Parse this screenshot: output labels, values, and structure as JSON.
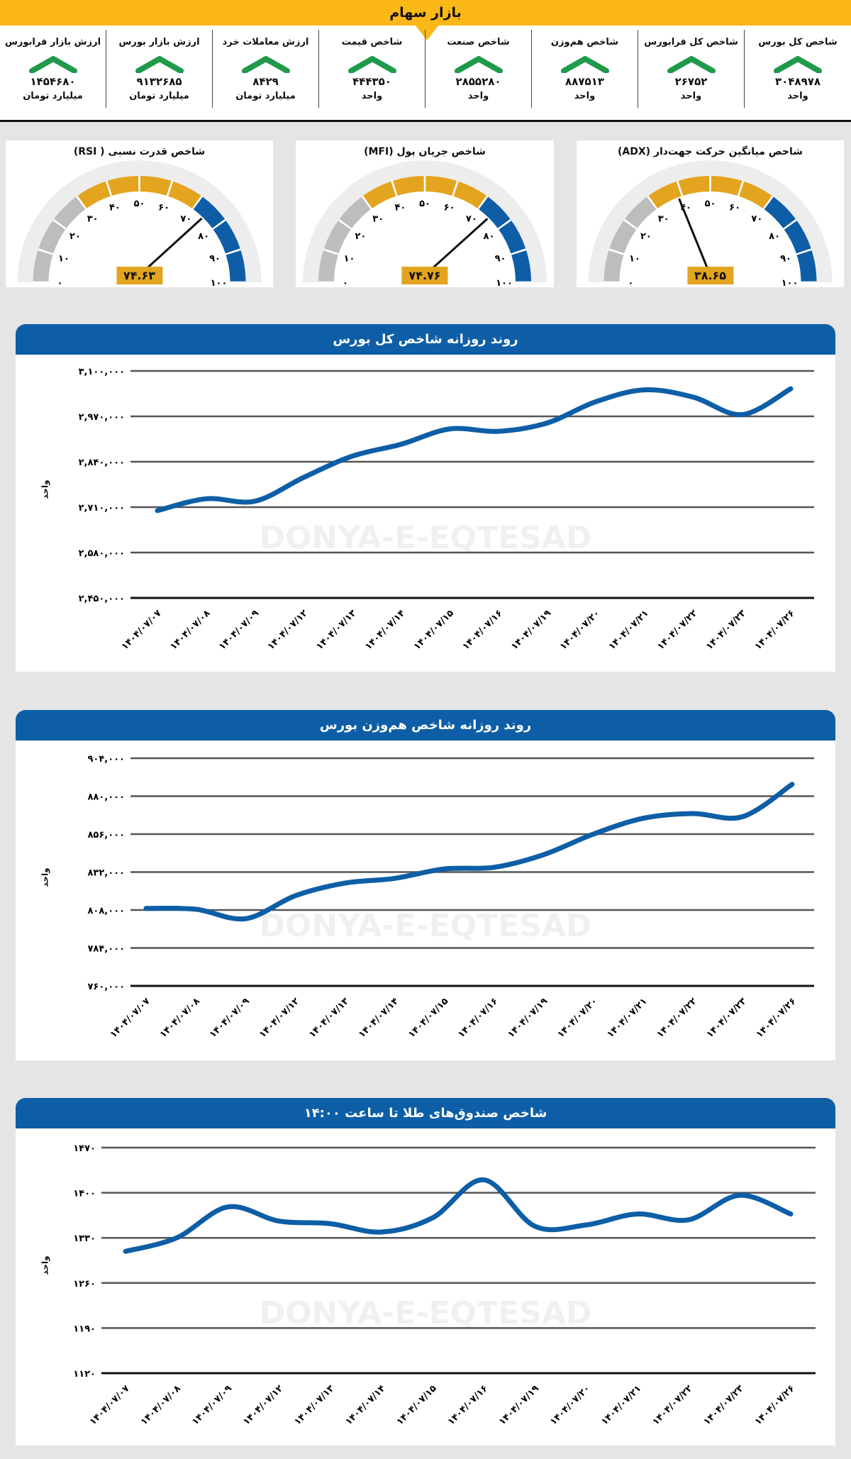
{
  "header": {
    "title": "بازار سهام"
  },
  "stats": [
    {
      "label": "شاخص کل بورس",
      "value": "۳۰۴۸۹۷۸",
      "unit": "واحد",
      "trend": "up"
    },
    {
      "label": "شاخص کل فرابورس",
      "value": "۲۶۷۵۲",
      "unit": "واحد",
      "trend": "up"
    },
    {
      "label": "شاخص هم‌وزن",
      "value": "۸۸۷۵۱۳",
      "unit": "واحد",
      "trend": "up"
    },
    {
      "label": "شاخص صنعت",
      "value": "۲۸۵۵۲۸۰",
      "unit": "واحد",
      "trend": "up"
    },
    {
      "label": "شاخص قیمت",
      "value": "۴۴۴۳۵۰",
      "unit": "واحد",
      "trend": "up"
    },
    {
      "label": "ارزش معاملات خرد",
      "value": "۸۴۲۹",
      "unit": "میلیارد تومان",
      "trend": "up"
    },
    {
      "label": "ارزش بازار بورس",
      "value": "۹۱۳۲۶۸۵",
      "unit": "میلیارد تومان",
      "trend": "up"
    },
    {
      "label": "ارزش بازار فرابورس",
      "value": "۱۴۵۴۶۸۰",
      "unit": "میلیارد تومان",
      "trend": "up"
    }
  ],
  "colors": {
    "yellow": "#fbb817",
    "green": "#1f9a4a",
    "blue": "#0d5ea6",
    "orange": "#e3a41f",
    "grey": "#bdbdbd"
  },
  "gauges": [
    {
      "title": "شاخص قدرت نسبی ( RSI)",
      "value": 74.63,
      "value_label": "۷۴.۶۳"
    },
    {
      "title": "شاخص جریان پول (MFI)",
      "value": 74.76,
      "value_label": "۷۴.۷۶"
    },
    {
      "title": "شاخص میانگین حرکت جهت‌دار (ADX)",
      "value": 38.65,
      "value_label": "۳۸.۶۵"
    }
  ],
  "gauge_ticks": [
    "۰",
    "۱۰",
    "۲۰",
    "۳۰",
    "۴۰",
    "۵۰",
    "۶۰",
    "۷۰",
    "۸۰",
    "۹۰",
    "۱۰۰"
  ],
  "watermark": "DONYA-E-EQTESAD",
  "chart_data": [
    {
      "type": "line",
      "title": "روند روزانه شاخص کل بورس",
      "ylabel": "واحد",
      "xlabel": "",
      "categories": [
        "۱۴۰۴/۰۷/۰۷",
        "۱۴۰۴/۰۷/۰۸",
        "۱۴۰۴/۰۷/۰۹",
        "۱۴۰۴/۰۷/۱۲",
        "۱۴۰۴/۰۷/۱۳",
        "۱۴۰۴/۰۷/۱۴",
        "۱۴۰۴/۰۷/۱۵",
        "۱۴۰۴/۰۷/۱۶",
        "۱۴۰۴/۰۷/۱۹",
        "۱۴۰۴/۰۷/۲۰",
        "۱۴۰۴/۰۷/۲۱",
        "۱۴۰۴/۰۷/۲۲",
        "۱۴۰۴/۰۷/۲۳",
        "۱۴۰۴/۰۷/۲۶"
      ],
      "values": [
        2700000,
        2734000,
        2727000,
        2795000,
        2856000,
        2890000,
        2934000,
        2927000,
        2951000,
        3012000,
        3046000,
        3025000,
        2975000,
        3048978
      ],
      "ylim": [
        2450000,
        3100000
      ],
      "yticks": [
        3100000,
        2970000,
        2840000,
        2710000,
        2580000,
        2450000
      ],
      "ytick_labels": [
        "۳,۱۰۰,۰۰۰",
        "۲,۹۷۰,۰۰۰",
        "۲,۸۴۰,۰۰۰",
        "۲,۷۱۰,۰۰۰",
        "۲,۵۸۰,۰۰۰",
        "۲,۴۵۰,۰۰۰"
      ],
      "grid": true
    },
    {
      "type": "line",
      "title": "روند روزانه شاخص هم‌وزن بورس",
      "ylabel": "واحد",
      "xlabel": "",
      "categories": [
        "۱۴۰۴/۰۷/۰۷",
        "۱۴۰۴/۰۷/۰۸",
        "۱۴۰۴/۰۷/۰۹",
        "۱۴۰۴/۰۷/۱۲",
        "۱۴۰۴/۰۷/۱۳",
        "۱۴۰۴/۰۷/۱۴",
        "۱۴۰۴/۰۷/۱۵",
        "۱۴۰۴/۰۷/۱۶",
        "۱۴۰۴/۰۷/۱۹",
        "۱۴۰۴/۰۷/۲۰",
        "۱۴۰۴/۰۷/۲۱",
        "۱۴۰۴/۰۷/۲۲",
        "۱۴۰۴/۰۷/۲۳",
        "۱۴۰۴/۰۷/۲۶"
      ],
      "values": [
        809000,
        808500,
        802500,
        817000,
        825000,
        828000,
        834000,
        835000,
        843000,
        856000,
        866000,
        869000,
        867000,
        887513
      ],
      "ylim": [
        760000,
        904000
      ],
      "yticks": [
        904000,
        880000,
        856000,
        832000,
        808000,
        784000,
        760000
      ],
      "ytick_labels": [
        "۹۰۴,۰۰۰",
        "۸۸۰,۰۰۰",
        "۸۵۶,۰۰۰",
        "۸۳۲,۰۰۰",
        "۸۰۸,۰۰۰",
        "۷۸۴,۰۰۰",
        "۷۶۰,۰۰۰"
      ],
      "grid": true
    },
    {
      "type": "line",
      "title": "شاخص صندوق‌های طلا تا ساعت ۱۴:۰۰",
      "ylabel": "واحد",
      "xlabel": "",
      "categories": [
        "۱۴۰۴/۰۷/۰۷",
        "۱۴۰۴/۰۷/۰۸",
        "۱۴۰۴/۰۷/۰۹",
        "۱۴۰۴/۰۷/۱۲",
        "۱۴۰۴/۰۷/۱۳",
        "۱۴۰۴/۰۷/۱۴",
        "۱۴۰۴/۰۷/۱۵",
        "۱۴۰۴/۰۷/۱۶",
        "۱۴۰۴/۰۷/۱۹",
        "۱۴۰۴/۰۷/۲۰",
        "۱۴۰۴/۰۷/۲۱",
        "۱۴۰۴/۰۷/۲۲",
        "۱۴۰۴/۰۷/۲۳",
        "۱۴۰۴/۰۷/۲۶"
      ],
      "values": [
        1309,
        1330,
        1378,
        1356,
        1352,
        1339,
        1361,
        1420,
        1348,
        1350,
        1367,
        1358,
        1396,
        1367
      ],
      "ylim": [
        1120,
        1470
      ],
      "yticks": [
        1470,
        1400,
        1330,
        1260,
        1190,
        1120
      ],
      "ytick_labels": [
        "۱۴۷۰",
        "۱۴۰۰",
        "۱۳۳۰",
        "۱۲۶۰",
        "۱۱۹۰",
        "۱۱۲۰"
      ],
      "grid": true
    }
  ]
}
